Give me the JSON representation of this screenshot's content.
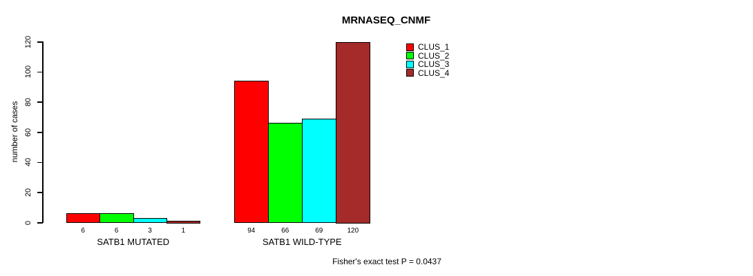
{
  "title": "MRNASEQ_CNMF",
  "footer": "Fisher's exact test P = 0.0437",
  "y_axis": {
    "label": "number of cases",
    "ticks": [
      0,
      20,
      40,
      60,
      80,
      100,
      120
    ]
  },
  "chart_data": {
    "type": "bar",
    "title": "MRNASEQ_CNMF",
    "ylabel": "number of cases",
    "xlabel": "",
    "ylim": [
      0,
      120
    ],
    "yticks": [
      0,
      20,
      40,
      60,
      80,
      100,
      120
    ],
    "grid": false,
    "legend_position": "top-right",
    "categories": [
      "SATB1 MUTATED",
      "SATB1 WILD-TYPE"
    ],
    "series": [
      {
        "name": "CLUS_1",
        "color": "#FF0000",
        "values": [
          6,
          94
        ]
      },
      {
        "name": "CLUS_2",
        "color": "#00FF00",
        "values": [
          6,
          66
        ]
      },
      {
        "name": "CLUS_3",
        "color": "#00FFFF",
        "values": [
          3,
          69
        ]
      },
      {
        "name": "CLUS_4",
        "color": "#A52A2A",
        "values": [
          1,
          120
        ]
      }
    ],
    "bar_value_labels": [
      [
        6,
        6,
        3,
        1
      ],
      [
        94,
        66,
        69,
        120
      ]
    ],
    "annotation": "Fisher's exact test P = 0.0437"
  }
}
